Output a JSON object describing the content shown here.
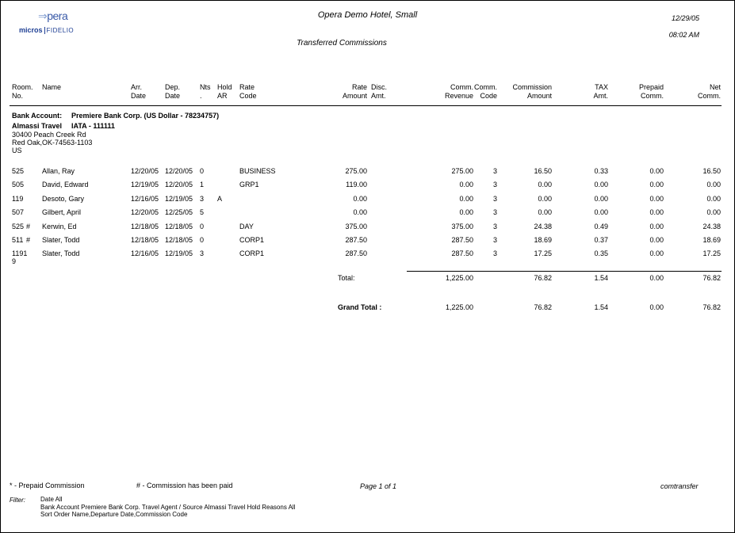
{
  "logo": {
    "opera": "Opera",
    "micros": "micros",
    "fidelio": "FIDELIO"
  },
  "header": {
    "hotel": "Opera Demo Hotel, Small",
    "report_title": "Transferred Commissions",
    "date": "12/29/05",
    "time": "08:02 AM"
  },
  "columns": [
    [
      "Room.",
      "No."
    ],
    [
      "Name",
      ""
    ],
    [
      "Arr.",
      "Date"
    ],
    [
      "Dep.",
      "Date"
    ],
    [
      "Nts",
      "."
    ],
    [
      "Hold",
      "AR"
    ],
    [
      "Rate",
      "Code"
    ],
    [
      "Rate",
      "Amount"
    ],
    [
      "Disc.",
      "Amt."
    ],
    [
      "Comm.",
      "Revenue"
    ],
    [
      "Comm.",
      "Code"
    ],
    [
      "Commission",
      "Amount"
    ],
    [
      "TAX",
      "Amt."
    ],
    [
      "Prepaid",
      "Comm."
    ],
    [
      "Net",
      "Comm."
    ]
  ],
  "bank": {
    "label": "Bank Account:",
    "value": "Premiere Bank Corp. (US Dollar - 78234757)",
    "agent": "Almassi Travel",
    "iata": "IATA - 111111",
    "address1": "30400 Peach Creek Rd",
    "address2": "Red Oak,OK-74563-1103",
    "country": "US"
  },
  "rows": [
    {
      "room": "525",
      "mark": "",
      "name": "Allan, Ray",
      "arr": "12/20/05",
      "dep": "12/20/05",
      "nts": "0",
      "hold": "",
      "code": "BUSINESS",
      "rate": "275.00",
      "disc": "",
      "rev": "275.00",
      "ccode": "3",
      "comm": "16.50",
      "tax": "0.33",
      "prepaid": "0.00",
      "net": "16.50"
    },
    {
      "room": "505",
      "mark": "",
      "name": "David, Edward",
      "arr": "12/19/05",
      "dep": "12/20/05",
      "nts": "1",
      "hold": "",
      "code": "GRP1",
      "rate": "119.00",
      "disc": "",
      "rev": "0.00",
      "ccode": "3",
      "comm": "0.00",
      "tax": "0.00",
      "prepaid": "0.00",
      "net": "0.00"
    },
    {
      "room": "119",
      "mark": "",
      "name": "Desoto, Gary",
      "arr": "12/16/05",
      "dep": "12/19/05",
      "nts": "3",
      "hold": "A",
      "code": "",
      "rate": "0.00",
      "disc": "",
      "rev": "0.00",
      "ccode": "3",
      "comm": "0.00",
      "tax": "0.00",
      "prepaid": "0.00",
      "net": "0.00"
    },
    {
      "room": "507",
      "mark": "",
      "name": "Gilbert, April",
      "arr": "12/20/05",
      "dep": "12/25/05",
      "nts": "5",
      "hold": "",
      "code": "",
      "rate": "0.00",
      "disc": "",
      "rev": "0.00",
      "ccode": "3",
      "comm": "0.00",
      "tax": "0.00",
      "prepaid": "0.00",
      "net": "0.00"
    },
    {
      "room": "525",
      "mark": "#",
      "name": "Kerwin, Ed",
      "arr": "12/18/05",
      "dep": "12/18/05",
      "nts": "0",
      "hold": "",
      "code": "DAY",
      "rate": "375.00",
      "disc": "",
      "rev": "375.00",
      "ccode": "3",
      "comm": "24.38",
      "tax": "0.49",
      "prepaid": "0.00",
      "net": "24.38"
    },
    {
      "room": "511",
      "mark": "#",
      "name": "Slater, Todd",
      "arr": "12/18/05",
      "dep": "12/18/05",
      "nts": "0",
      "hold": "",
      "code": "CORP1",
      "rate": "287.50",
      "disc": "",
      "rev": "287.50",
      "ccode": "3",
      "comm": "18.69",
      "tax": "0.37",
      "prepaid": "0.00",
      "net": "18.69"
    },
    {
      "room": "1191\n9",
      "mark": "",
      "name": "Slater, Todd",
      "arr": "12/16/05",
      "dep": "12/19/05",
      "nts": "3",
      "hold": "",
      "code": "CORP1",
      "rate": "287.50",
      "disc": "",
      "rev": "287.50",
      "ccode": "3",
      "comm": "17.25",
      "tax": "0.35",
      "prepaid": "0.00",
      "net": "17.25"
    }
  ],
  "total": {
    "label": "Total:",
    "rev": "1,225.00",
    "comm": "76.82",
    "tax": "1.54",
    "prepaid": "0.00",
    "net": "76.82"
  },
  "grand_total": {
    "label": "Grand Total :",
    "rev": "1,225.00",
    "comm": "76.82",
    "tax": "1.54",
    "prepaid": "0.00",
    "net": "76.82"
  },
  "footer": {
    "legend_prepaid": "* -  Prepaid Commission",
    "legend_paid": "# - Commission has been paid",
    "page": "Page 1 of 1",
    "report_code": "comtransfer",
    "filter_label": "Filter:",
    "filter_lines": [
      "Date All",
      "Bank Account Premiere Bank Corp.   Travel Agent / Source Almassi Travel   Hold Reasons All",
      "Sort Order Name,Departure Date,Commission Code"
    ]
  }
}
